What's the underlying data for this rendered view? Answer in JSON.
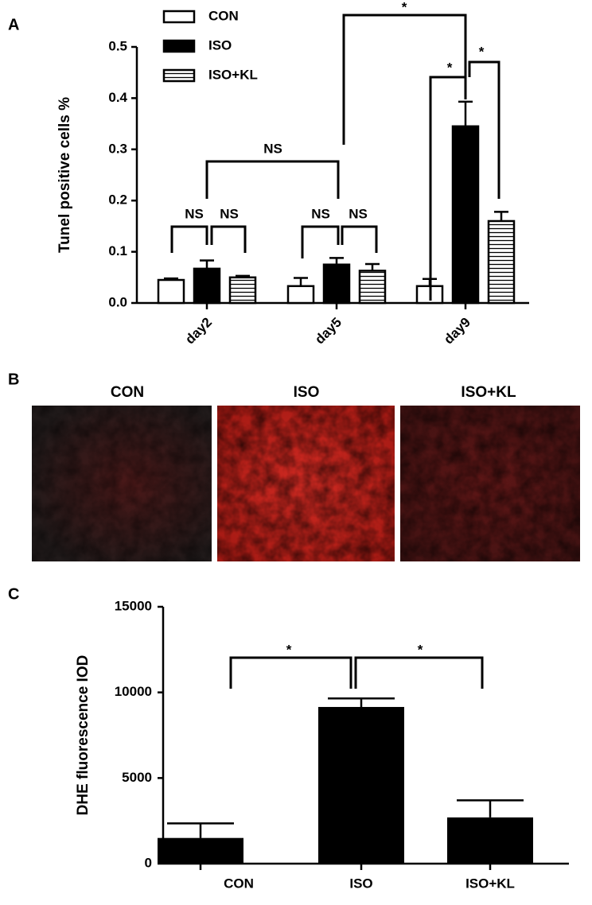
{
  "panels": [
    "A",
    "B",
    "C"
  ],
  "images": [
    "CON",
    "ISO",
    "ISO+KL"
  ],
  "chart_data": [
    {
      "type": "bar",
      "ylabel": "Tunel positive cells %",
      "categories": [
        "day2",
        "day5",
        "day9"
      ],
      "series": [
        {
          "name": "CON",
          "color": "#ffffff",
          "values": [
            0.045,
            0.033,
            0.033
          ],
          "errors": [
            0.003,
            0.016,
            0.014
          ]
        },
        {
          "name": "ISO",
          "color": "#000000",
          "values": [
            0.067,
            0.075,
            0.345
          ],
          "errors": [
            0.016,
            0.013,
            0.048
          ]
        },
        {
          "name": "ISO+KL",
          "color": "#ffffff",
          "hatch": "horizontal",
          "values": [
            0.05,
            0.063,
            0.16
          ],
          "errors": [
            0.003,
            0.013,
            0.018
          ]
        }
      ],
      "ylim": [
        0,
        0.5
      ],
      "yticks": [
        {
          "value": 0,
          "label": "0.0"
        },
        0.1,
        0.2,
        0.3,
        0.4,
        0.5
      ],
      "legend": "top-left",
      "annotations": [
        "NS",
        "NS",
        "NS",
        "NS",
        "NS",
        "*",
        "*",
        "*"
      ]
    },
    {
      "type": "bar",
      "ylabel": "DHE fluorescence IOD",
      "categories": [
        "CON",
        "ISO",
        "ISO+KL"
      ],
      "values": [
        1500,
        9150,
        2700
      ],
      "errors": [
        850,
        500,
        1000
      ],
      "color": "#000000",
      "ylim": [
        0,
        15000
      ],
      "yticks": [
        0,
        5000,
        10000,
        15000
      ],
      "annotations": [
        "*",
        "*"
      ]
    }
  ]
}
